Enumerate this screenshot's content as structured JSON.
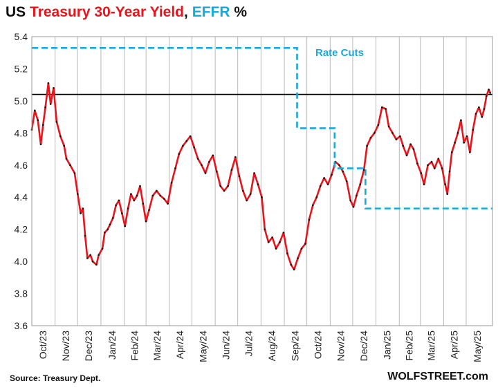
{
  "title": {
    "prefix": "US",
    "treasury": "Treasury 30-Year Yield",
    "separator": ",",
    "effr": "EFFR",
    "suffix": "%"
  },
  "footer": {
    "source": "Source: Treasury Dept.",
    "brand": "WOLFSTREET.com"
  },
  "colors": {
    "treasury_line": "#e8141c",
    "effr_line": "#1aa7dc",
    "reference_line": "#000000",
    "grid": "#b8b8b8"
  },
  "chart_data": {
    "type": "line",
    "title": "US Treasury 30-Year Yield, EFFR %",
    "ylim": [
      3.6,
      5.4
    ],
    "yticks": [
      "3.6",
      "3.8",
      "4.0",
      "4.2",
      "4.4",
      "4.6",
      "4.8",
      "5.0",
      "5.2",
      "5.4"
    ],
    "xticks": [
      "Oct/23",
      "Nov/23",
      "Dec/23",
      "Jan/24",
      "Feb/24",
      "Mar/24",
      "Apr/24",
      "May/24",
      "Jun/24",
      "Jul/24",
      "Aug/24",
      "Sep/24",
      "Oct/24",
      "Nov/24",
      "Dec/24",
      "Jan/25",
      "Feb/25",
      "Mar/25",
      "Apr/25",
      "May/25"
    ],
    "grid": "vertical",
    "reference_line": {
      "y": 5.04
    },
    "annotation": "Rate Cuts",
    "series": [
      {
        "key": "treasury",
        "x": [
          "2023-10-01",
          "2023-10-05",
          "2023-10-09",
          "2023-10-13",
          "2023-10-16",
          "2023-10-19",
          "2023-10-23",
          "2023-10-26",
          "2023-10-30",
          "2023-11-03",
          "2023-11-08",
          "2023-11-13",
          "2023-11-16",
          "2023-11-21",
          "2023-11-27",
          "2023-12-01",
          "2023-12-05",
          "2023-12-08",
          "2023-12-11",
          "2023-12-14",
          "2023-12-18",
          "2023-12-21",
          "2023-12-26",
          "2023-12-29",
          "2024-01-03",
          "2024-01-06",
          "2024-01-10",
          "2024-01-13",
          "2024-01-17",
          "2024-01-21",
          "2024-01-25",
          "2024-01-29",
          "2024-02-02",
          "2024-02-06",
          "2024-02-10",
          "2024-02-14",
          "2024-02-18",
          "2024-02-22",
          "2024-02-26",
          "2024-03-01",
          "2024-03-05",
          "2024-03-10",
          "2024-03-15",
          "2024-03-20",
          "2024-03-25",
          "2024-03-30",
          "2024-04-04",
          "2024-04-09",
          "2024-04-14",
          "2024-04-19",
          "2024-04-24",
          "2024-04-29",
          "2024-05-04",
          "2024-05-09",
          "2024-05-14",
          "2024-05-19",
          "2024-05-24",
          "2024-05-29",
          "2024-06-03",
          "2024-06-08",
          "2024-06-13",
          "2024-06-18",
          "2024-06-23",
          "2024-06-28",
          "2024-07-03",
          "2024-07-08",
          "2024-07-13",
          "2024-07-18",
          "2024-07-23",
          "2024-07-28",
          "2024-08-02",
          "2024-08-06",
          "2024-08-11",
          "2024-08-16",
          "2024-08-21",
          "2024-08-26",
          "2024-08-31",
          "2024-09-05",
          "2024-09-10",
          "2024-09-14",
          "2024-09-19",
          "2024-09-24",
          "2024-09-29",
          "2024-10-04",
          "2024-10-09",
          "2024-10-14",
          "2024-10-19",
          "2024-10-24",
          "2024-10-29",
          "2024-11-03",
          "2024-11-08",
          "2024-11-13",
          "2024-11-18",
          "2024-11-23",
          "2024-11-28",
          "2024-12-02",
          "2024-12-06",
          "2024-12-11",
          "2024-12-16",
          "2024-12-20",
          "2024-12-25",
          "2024-12-30",
          "2025-01-04",
          "2025-01-09",
          "2025-01-14",
          "2025-01-18",
          "2025-01-23",
          "2025-01-28",
          "2025-02-02",
          "2025-02-06",
          "2025-02-11",
          "2025-02-16",
          "2025-02-20",
          "2025-02-25",
          "2025-03-02",
          "2025-03-06",
          "2025-03-11",
          "2025-03-16",
          "2025-03-20",
          "2025-03-25",
          "2025-03-30",
          "2025-04-03",
          "2025-04-06",
          "2025-04-09",
          "2025-04-12",
          "2025-04-16",
          "2025-04-20",
          "2025-04-24",
          "2025-04-28",
          "2025-05-02",
          "2025-05-06",
          "2025-05-10",
          "2025-05-14",
          "2025-05-18",
          "2025-05-22",
          "2025-05-25",
          "2025-05-28",
          "2025-05-31",
          "2025-06-02"
        ],
        "values": [
          4.82,
          4.94,
          4.88,
          4.73,
          4.85,
          4.96,
          5.11,
          4.98,
          5.08,
          4.87,
          4.78,
          4.72,
          4.64,
          4.6,
          4.55,
          4.42,
          4.3,
          4.33,
          4.16,
          4.02,
          4.04,
          4.0,
          3.98,
          4.04,
          4.08,
          4.18,
          4.2,
          4.23,
          4.27,
          4.35,
          4.38,
          4.3,
          4.22,
          4.33,
          4.42,
          4.38,
          4.41,
          4.47,
          4.36,
          4.25,
          4.32,
          4.41,
          4.44,
          4.41,
          4.39,
          4.36,
          4.49,
          4.58,
          4.67,
          4.72,
          4.75,
          4.78,
          4.71,
          4.64,
          4.6,
          4.55,
          4.62,
          4.66,
          4.56,
          4.47,
          4.44,
          4.47,
          4.57,
          4.65,
          4.53,
          4.44,
          4.38,
          4.42,
          4.55,
          4.48,
          4.4,
          4.2,
          4.12,
          4.15,
          4.08,
          4.12,
          4.18,
          4.05,
          3.98,
          3.95,
          4.02,
          4.08,
          4.11,
          4.26,
          4.35,
          4.4,
          4.47,
          4.52,
          4.48,
          4.54,
          4.62,
          4.6,
          4.56,
          4.5,
          4.38,
          4.34,
          4.41,
          4.48,
          4.57,
          4.72,
          4.77,
          4.8,
          4.85,
          4.96,
          4.95,
          4.84,
          4.8,
          4.76,
          4.78,
          4.72,
          4.66,
          4.73,
          4.7,
          4.61,
          4.55,
          4.48,
          4.6,
          4.62,
          4.58,
          4.64,
          4.58,
          4.48,
          4.42,
          4.56,
          4.68,
          4.74,
          4.8,
          4.88,
          4.74,
          4.78,
          4.68,
          4.82,
          4.92,
          4.96,
          4.9,
          4.95,
          5.03,
          5.07,
          5.05
        ]
      },
      {
        "key": "effr",
        "x": [
          "2023-10-01",
          "2024-09-18",
          "2024-09-18",
          "2024-11-07",
          "2024-11-07",
          "2024-12-18",
          "2024-12-18",
          "2025-06-05"
        ],
        "values": [
          5.33,
          5.33,
          4.83,
          4.83,
          4.58,
          4.58,
          4.33,
          4.33
        ]
      }
    ]
  }
}
